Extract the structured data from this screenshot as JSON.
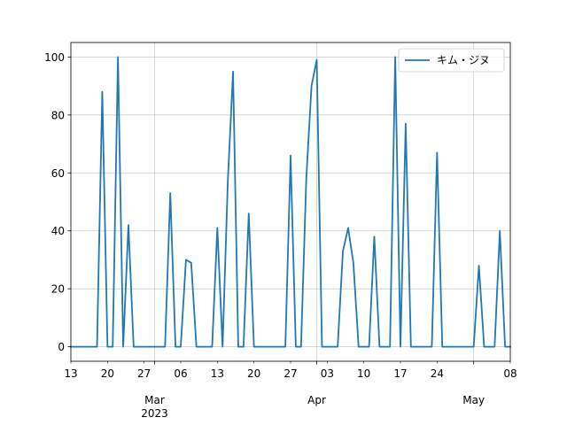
{
  "chart_data": {
    "type": "line",
    "title": "",
    "xlabel": "",
    "ylabel": "",
    "grid": true,
    "legend_position": "upper right",
    "xlim": [
      "2023-02-13",
      "2023-05-08"
    ],
    "ylim": [
      -5,
      105
    ],
    "x_ticks": [
      {
        "date": "2023-02-13",
        "label": "13"
      },
      {
        "date": "2023-02-20",
        "label": "20"
      },
      {
        "date": "2023-02-27",
        "label": "27"
      },
      {
        "date": "2023-03-06",
        "label": "06"
      },
      {
        "date": "2023-03-13",
        "label": "13"
      },
      {
        "date": "2023-03-20",
        "label": "20"
      },
      {
        "date": "2023-03-27",
        "label": "27"
      },
      {
        "date": "2023-04-03",
        "label": "03"
      },
      {
        "date": "2023-04-10",
        "label": "10"
      },
      {
        "date": "2023-04-17",
        "label": "17"
      },
      {
        "date": "2023-04-24",
        "label": "24"
      },
      {
        "date": "2023-05-08",
        "label": "08"
      }
    ],
    "x_major_labels": [
      {
        "date": "2023-03-01",
        "label": "Mar"
      },
      {
        "date": "2023-03-01",
        "label": "2023"
      },
      {
        "date": "2023-04-01",
        "label": "Apr"
      },
      {
        "date": "2023-05-01",
        "label": "May"
      }
    ],
    "y_ticks": [
      0,
      20,
      40,
      60,
      80,
      100
    ],
    "series": [
      {
        "name": "キム・ジヌ",
        "color": "#1f77b4",
        "points": [
          [
            "2023-02-13",
            0
          ],
          [
            "2023-02-14",
            0
          ],
          [
            "2023-02-15",
            0
          ],
          [
            "2023-02-16",
            0
          ],
          [
            "2023-02-17",
            0
          ],
          [
            "2023-02-18",
            0
          ],
          [
            "2023-02-19",
            88
          ],
          [
            "2023-02-20",
            0
          ],
          [
            "2023-02-21",
            0
          ],
          [
            "2023-02-22",
            100
          ],
          [
            "2023-02-23",
            0
          ],
          [
            "2023-02-24",
            42
          ],
          [
            "2023-02-25",
            0
          ],
          [
            "2023-02-26",
            0
          ],
          [
            "2023-02-27",
            0
          ],
          [
            "2023-02-28",
            0
          ],
          [
            "2023-03-01",
            0
          ],
          [
            "2023-03-02",
            0
          ],
          [
            "2023-03-03",
            0
          ],
          [
            "2023-03-04",
            53
          ],
          [
            "2023-03-05",
            0
          ],
          [
            "2023-03-06",
            0
          ],
          [
            "2023-03-07",
            30
          ],
          [
            "2023-03-08",
            29
          ],
          [
            "2023-03-09",
            0
          ],
          [
            "2023-03-10",
            0
          ],
          [
            "2023-03-11",
            0
          ],
          [
            "2023-03-12",
            0
          ],
          [
            "2023-03-13",
            41
          ],
          [
            "2023-03-14",
            0
          ],
          [
            "2023-03-15",
            57
          ],
          [
            "2023-03-16",
            95
          ],
          [
            "2023-03-17",
            0
          ],
          [
            "2023-03-18",
            0
          ],
          [
            "2023-03-19",
            46
          ],
          [
            "2023-03-20",
            0
          ],
          [
            "2023-03-21",
            0
          ],
          [
            "2023-03-22",
            0
          ],
          [
            "2023-03-23",
            0
          ],
          [
            "2023-03-24",
            0
          ],
          [
            "2023-03-25",
            0
          ],
          [
            "2023-03-26",
            0
          ],
          [
            "2023-03-27",
            66
          ],
          [
            "2023-03-28",
            0
          ],
          [
            "2023-03-29",
            0
          ],
          [
            "2023-03-30",
            58
          ],
          [
            "2023-03-31",
            90
          ],
          [
            "2023-04-01",
            99
          ],
          [
            "2023-04-02",
            0
          ],
          [
            "2023-04-03",
            0
          ],
          [
            "2023-04-04",
            0
          ],
          [
            "2023-04-05",
            0
          ],
          [
            "2023-04-06",
            33
          ],
          [
            "2023-04-07",
            41
          ],
          [
            "2023-04-08",
            29
          ],
          [
            "2023-04-09",
            0
          ],
          [
            "2023-04-10",
            0
          ],
          [
            "2023-04-11",
            0
          ],
          [
            "2023-04-12",
            38
          ],
          [
            "2023-04-13",
            0
          ],
          [
            "2023-04-14",
            0
          ],
          [
            "2023-04-15",
            0
          ],
          [
            "2023-04-16",
            100
          ],
          [
            "2023-04-17",
            0
          ],
          [
            "2023-04-18",
            77
          ],
          [
            "2023-04-19",
            0
          ],
          [
            "2023-04-20",
            0
          ],
          [
            "2023-04-21",
            0
          ],
          [
            "2023-04-22",
            0
          ],
          [
            "2023-04-23",
            0
          ],
          [
            "2023-04-24",
            67
          ],
          [
            "2023-04-25",
            0
          ],
          [
            "2023-04-26",
            0
          ],
          [
            "2023-04-27",
            0
          ],
          [
            "2023-04-28",
            0
          ],
          [
            "2023-04-29",
            0
          ],
          [
            "2023-04-30",
            0
          ],
          [
            "2023-05-01",
            0
          ],
          [
            "2023-05-02",
            28
          ],
          [
            "2023-05-03",
            0
          ],
          [
            "2023-05-04",
            0
          ],
          [
            "2023-05-05",
            0
          ],
          [
            "2023-05-06",
            40
          ],
          [
            "2023-05-07",
            0
          ],
          [
            "2023-05-08",
            0
          ]
        ]
      }
    ]
  }
}
